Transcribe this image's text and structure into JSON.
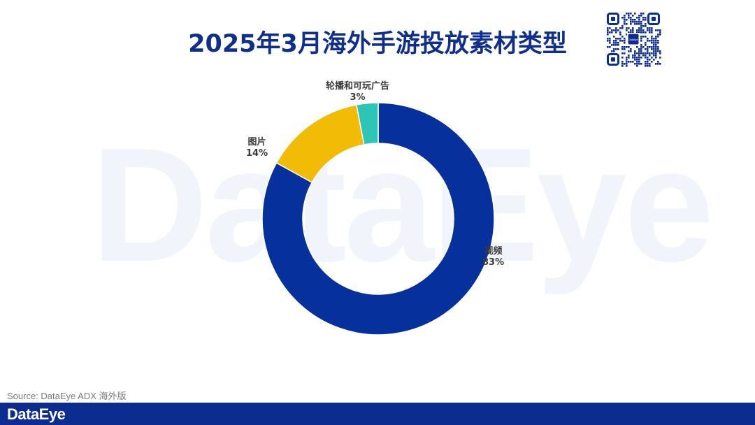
{
  "header": {
    "title": "2025年3月海外手游投放素材类型"
  },
  "watermark": {
    "text": "DataEye"
  },
  "qr": {
    "center_text": "DataEye"
  },
  "colors": {
    "brand": "#0d2c8f",
    "title": "#0f2f8c"
  },
  "chart_data": {
    "type": "pie",
    "donut": true,
    "title": "2025年3月海外手游投放素材类型",
    "slices": [
      {
        "label": "视频",
        "value": 83,
        "display": "83%",
        "color": "#06309b"
      },
      {
        "label": "图片",
        "value": 14,
        "display": "14%",
        "color": "#f2bb06"
      },
      {
        "label": "轮播和可玩广告",
        "value": 3,
        "display": "3%",
        "color": "#2ec4b6"
      }
    ]
  },
  "footer": {
    "source": "Source: DataEye ADX 海外版",
    "logo": "DataEye"
  }
}
